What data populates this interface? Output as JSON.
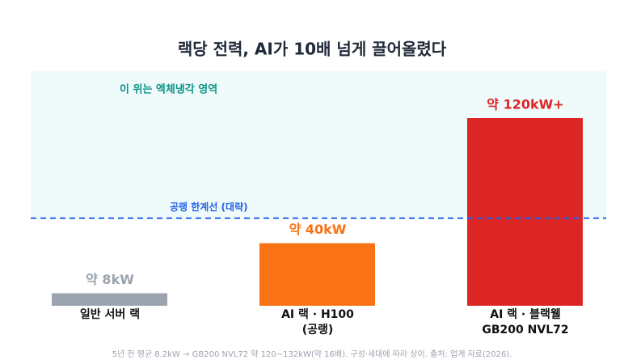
{
  "chart_data": {
    "type": "bar",
    "title": "랙당 전력, AI가 10배 넘게 끌어올렸다",
    "categories": [
      "일반 서버 랙",
      "AI 랙 · H100\n(공랭)",
      "AI 랙 · 블랙웰\nGB200 NVL72"
    ],
    "values": [
      8,
      40,
      120
    ],
    "value_labels": [
      "약 8kW",
      "약 40kW",
      "약 120kW+"
    ],
    "colors": [
      "#9aa3ae",
      "#f97316",
      "#dc2626"
    ],
    "ylim": [
      0,
      150
    ],
    "threshold": 56,
    "threshold_label": "공랭 한계선 (대략)",
    "zone_label": "이 위는 액체냉각 영역",
    "note": "5년 전 평균 8.2kW → GB200 NVL72 약 120~132kW(약 16배). 구성·세대에 따라 상이. 출처: 업계 자료(2026)."
  }
}
